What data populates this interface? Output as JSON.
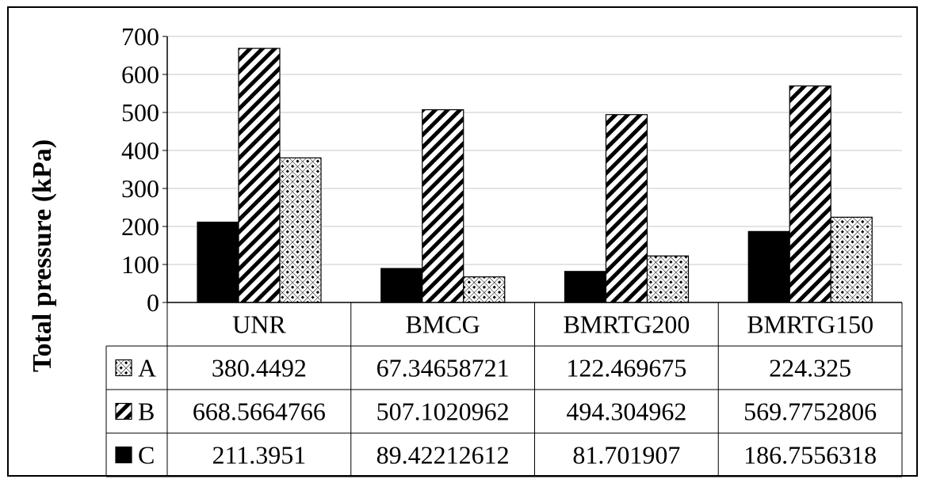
{
  "chart_data": {
    "type": "bar",
    "ylabel": "Total pressure (kPa)",
    "ylim": [
      0,
      700
    ],
    "yticks": [
      0,
      100,
      200,
      300,
      400,
      500,
      600,
      700
    ],
    "grid": true,
    "categories": [
      "UNR",
      "BMCG",
      "BMRTG200",
      "BMRTG150"
    ],
    "series": [
      {
        "name": "C",
        "pattern": "solid",
        "values": [
          211.3951,
          89.42212612,
          81.701907,
          186.7556318
        ],
        "labels": [
          "211.3951",
          "89.42212612",
          "81.701907",
          "186.7556318"
        ]
      },
      {
        "name": "B",
        "pattern": "diagonal-stripes",
        "values": [
          668.5664766,
          507.1020962,
          494.304962,
          569.7752806
        ],
        "labels": [
          "668.5664766",
          "507.1020962",
          "494.304962",
          "569.7752806"
        ]
      },
      {
        "name": "A",
        "pattern": "cross-hatch",
        "values": [
          380.4492,
          67.34658721,
          122.469675,
          224.325
        ],
        "labels": [
          "380.4492",
          "67.34658721",
          "122.469675",
          "224.325"
        ]
      }
    ],
    "table_row_order": [
      "A",
      "B",
      "C"
    ],
    "colors": {
      "bar_fill": "#000000",
      "bar_stroke": "#000000",
      "grid": "#c8c8c8",
      "background": "#ffffff"
    }
  }
}
